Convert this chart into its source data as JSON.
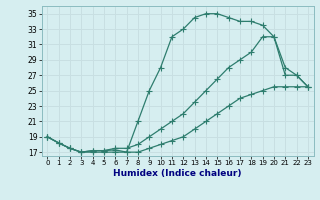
{
  "xlabel": "Humidex (Indice chaleur)",
  "bg_color": "#d6eef0",
  "grid_color": "#b8dce0",
  "line_color": "#2e7d6e",
  "x_values": [
    0,
    1,
    2,
    3,
    4,
    5,
    6,
    7,
    8,
    9,
    10,
    11,
    12,
    13,
    14,
    15,
    16,
    17,
    18,
    19,
    20,
    21,
    22,
    23
  ],
  "line1_y": [
    19,
    18.2,
    17.5,
    17,
    17.2,
    17.2,
    17.3,
    17,
    21,
    25,
    28,
    32,
    33,
    34.5,
    35,
    35,
    34.5,
    34,
    34,
    33.5,
    32,
    28,
    27,
    25.5
  ],
  "line2_y": [
    19,
    18.2,
    17.5,
    17,
    17.2,
    17.2,
    17.5,
    17.5,
    18,
    19,
    20,
    21,
    22,
    23.5,
    25,
    26.5,
    28,
    29,
    30,
    32,
    32,
    27,
    27,
    25.5
  ],
  "line3_y": [
    19,
    18.2,
    17.5,
    17,
    17,
    17,
    17,
    17,
    17,
    17.5,
    18,
    18.5,
    19,
    20,
    21,
    22,
    23,
    24,
    24.5,
    25,
    25.5,
    25.5,
    25.5,
    25.5
  ],
  "ylim": [
    16.5,
    36
  ],
  "yticks": [
    17,
    19,
    21,
    23,
    25,
    27,
    29,
    31,
    33,
    35
  ],
  "xlim": [
    -0.5,
    23.5
  ],
  "xticks": [
    0,
    1,
    2,
    3,
    4,
    5,
    6,
    7,
    8,
    9,
    10,
    11,
    12,
    13,
    14,
    15,
    16,
    17,
    18,
    19,
    20,
    21,
    22,
    23
  ]
}
